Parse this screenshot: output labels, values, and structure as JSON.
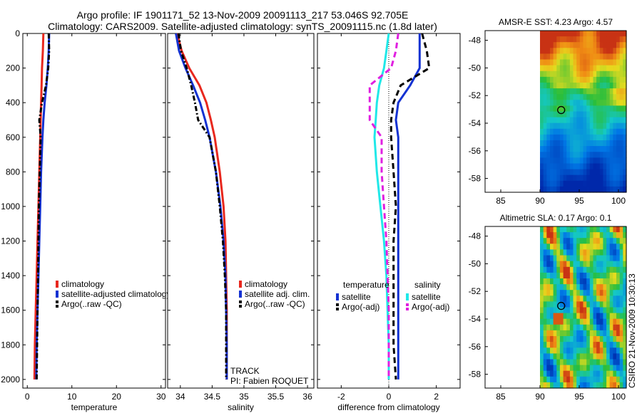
{
  "header": {
    "line1": "Argo profile: IF 1901171_52 13-Nov-2009 20091113_217 53.046S 92.705E",
    "line2": "Climatology: CARS2009. Satellite-adjusted climatology: synTS_20091115.nc (1.8d later)"
  },
  "colors": {
    "climatology": "#e8281e",
    "satellite": "#1432d2",
    "argo": "#000000",
    "sal_sat": "#20e8e8",
    "sal_argo": "#e020e0"
  },
  "chart_data": [
    {
      "type": "line",
      "id": "temperature",
      "xlabel": "temperature",
      "xlim": [
        -1,
        31
      ],
      "ylim": [
        0,
        2050
      ],
      "xticks": [
        "0",
        "10",
        "20",
        "30"
      ],
      "yticks": [
        "0",
        "200",
        "400",
        "600",
        "800",
        "1000",
        "1200",
        "1400",
        "1600",
        "1800",
        "2000"
      ],
      "depth": [
        0,
        100,
        200,
        300,
        400,
        500,
        600,
        800,
        1000,
        1200,
        1400,
        1600,
        1800,
        2000
      ],
      "series": [
        {
          "name": "climatology",
          "values": [
            3.6,
            3.5,
            3.3,
            3.2,
            3.1,
            3.0,
            2.9,
            2.7,
            2.5,
            2.3,
            2.1,
            1.9,
            1.7,
            1.6
          ]
        },
        {
          "name": "satellite-adjusted climatology",
          "values": [
            4.9,
            4.8,
            4.6,
            4.3,
            3.9,
            3.6,
            3.4,
            3.1,
            2.9,
            2.7,
            2.5,
            2.3,
            2.1,
            2.0
          ]
        },
        {
          "name": "Argo(..raw -QC)",
          "values": [
            4.8,
            4.9,
            4.7,
            4.2,
            3.3,
            2.7,
            3.0,
            2.8,
            2.6,
            2.5,
            2.4,
            2.3,
            2.2,
            2.1
          ]
        }
      ],
      "legend": [
        "climatology",
        "satellite-adjusted climatology",
        "Argo(..raw -QC)"
      ]
    },
    {
      "type": "line",
      "id": "salinity",
      "xlabel": "salinity",
      "xlim": [
        33.8,
        36.1
      ],
      "ylim": [
        0,
        2050
      ],
      "xticks": [
        "34",
        "34.5",
        "35",
        "35.5",
        "36"
      ],
      "depth": [
        0,
        100,
        200,
        300,
        400,
        500,
        600,
        800,
        1000,
        1200,
        1400,
        1600,
        1800,
        2000
      ],
      "series": [
        {
          "name": "climatology",
          "values": [
            33.95,
            34.02,
            34.14,
            34.3,
            34.41,
            34.48,
            34.54,
            34.62,
            34.68,
            34.71,
            34.72,
            34.73,
            34.73,
            34.73
          ]
        },
        {
          "name": "satellite adj. clim.",
          "values": [
            33.93,
            33.98,
            34.08,
            34.2,
            34.31,
            34.39,
            34.46,
            34.56,
            34.63,
            34.68,
            34.71,
            34.72,
            34.73,
            34.73
          ]
        },
        {
          "name": "Argo(..raw -QC)",
          "values": [
            33.97,
            34.01,
            34.1,
            34.17,
            34.23,
            34.28,
            34.46,
            34.56,
            34.62,
            34.67,
            34.7,
            34.72,
            34.72,
            34.72
          ]
        }
      ],
      "legend": [
        "climatology",
        "satellite adj. clim.",
        "Argo(..raw -QC)"
      ],
      "annotations": [
        "TRACK",
        "PI: Fabien ROQUET"
      ]
    },
    {
      "type": "line",
      "id": "difference",
      "xlabel": "difference from climatology",
      "xlim": [
        -3,
        3
      ],
      "ylim": [
        0,
        2050
      ],
      "xticks": [
        "-2",
        "0",
        "2"
      ],
      "depth": [
        0,
        100,
        200,
        300,
        400,
        500,
        600,
        800,
        1000,
        1200,
        1400,
        1600,
        1800,
        2000
      ],
      "series": [
        {
          "name": "temperature satellite",
          "values": [
            1.3,
            1.3,
            1.3,
            0.9,
            0.4,
            0.3,
            0.4,
            0.4,
            0.4,
            0.4,
            0.4,
            0.4,
            0.4,
            0.4
          ]
        },
        {
          "name": "temperature Argo(-adj)",
          "values": [
            1.4,
            1.6,
            1.7,
            0.5,
            0.2,
            0.1,
            0.1,
            0.2,
            0.3,
            0.2,
            0.2,
            0.2,
            0.2,
            0.3
          ]
        },
        {
          "name": "salinity satellite",
          "values": [
            0.0,
            -0.1,
            -0.2,
            -0.4,
            -0.5,
            -0.55,
            -0.6,
            -0.5,
            -0.35,
            -0.2,
            -0.1,
            -0.05,
            0.0,
            0.0
          ]
        },
        {
          "name": "salinity Argo(-adj)",
          "values": [
            0.4,
            0.3,
            0.1,
            -0.8,
            -0.8,
            -0.8,
            -0.3,
            -0.3,
            -0.2,
            -0.1,
            -0.05,
            0.0,
            0.0,
            0.0
          ]
        }
      ],
      "legend_headers": [
        "temperature",
        "salinity"
      ],
      "legend": [
        "satellite",
        "Argo(-adj)",
        "satellite",
        "Argo(-adj)"
      ]
    },
    {
      "type": "heatmap",
      "id": "sst",
      "title": "AMSR-E SST: 4.23 Argo: 4.57",
      "xlim": [
        83,
        101
      ],
      "ylim": [
        -59,
        -47.3
      ],
      "xticks": [
        "85",
        "90",
        "95",
        "100"
      ],
      "yticks": [
        "-48",
        "-50",
        "-52",
        "-54",
        "-56",
        "-58"
      ],
      "marker": {
        "lon": 92.7,
        "lat": -53.05
      }
    },
    {
      "type": "heatmap",
      "id": "sla",
      "title": "Altimetric SLA: 0.17 Argo: 0.1",
      "xlim": [
        83,
        101
      ],
      "ylim": [
        -59,
        -47.3
      ],
      "xticks": [
        "85",
        "90",
        "95",
        "100"
      ],
      "yticks": [
        "-48",
        "-50",
        "-52",
        "-54",
        "-56",
        "-58"
      ],
      "marker": {
        "lon": 92.7,
        "lat": -53.05
      }
    }
  ],
  "footer": {
    "stamp": "CSIRO 21-Nov-2009 10:30:13"
  }
}
